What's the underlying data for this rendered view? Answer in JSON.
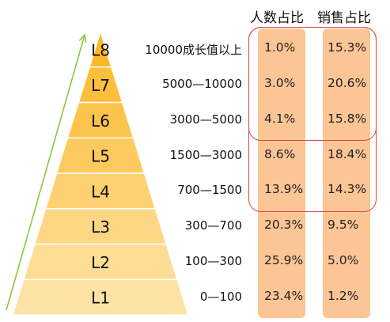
{
  "chart_data": {
    "type": "table",
    "columns": [
      "人数占比",
      "销售占比"
    ],
    "rows": [
      {
        "level": "L8",
        "range": "10000成长值以上",
        "people_pct": "1.0%",
        "sales_pct": "15.3%"
      },
      {
        "level": "L7",
        "range": "5000—10000",
        "people_pct": "3.0%",
        "sales_pct": "20.6%"
      },
      {
        "level": "L6",
        "range": "3000—5000",
        "people_pct": "4.1%",
        "sales_pct": "15.8%"
      },
      {
        "level": "L5",
        "range": "1500—3000",
        "people_pct": "8.6%",
        "sales_pct": "18.4%"
      },
      {
        "level": "L4",
        "range": "700—1500",
        "people_pct": "13.9%",
        "sales_pct": "14.3%"
      },
      {
        "level": "L3",
        "range": "300—700",
        "people_pct": "20.3%",
        "sales_pct": "9.5%"
      },
      {
        "level": "L2",
        "range": "100—300",
        "people_pct": "25.9%",
        "sales_pct": "5.0%"
      },
      {
        "level": "L1",
        "range": "0—100",
        "people_pct": "23.4%",
        "sales_pct": "1.2%"
      }
    ],
    "highlight_groups": [
      [
        "L8",
        "L7",
        "L6"
      ],
      [
        "L8",
        "L7",
        "L6",
        "L5",
        "L4"
      ]
    ]
  },
  "colors": {
    "tier_top": "#fcb82a",
    "tier_bottom": "#fde2a6",
    "tier_divider": "#ffffff",
    "column_fill": "#fcc595",
    "highlight_border": "#e0464a",
    "arrow": "#8dc63f"
  }
}
